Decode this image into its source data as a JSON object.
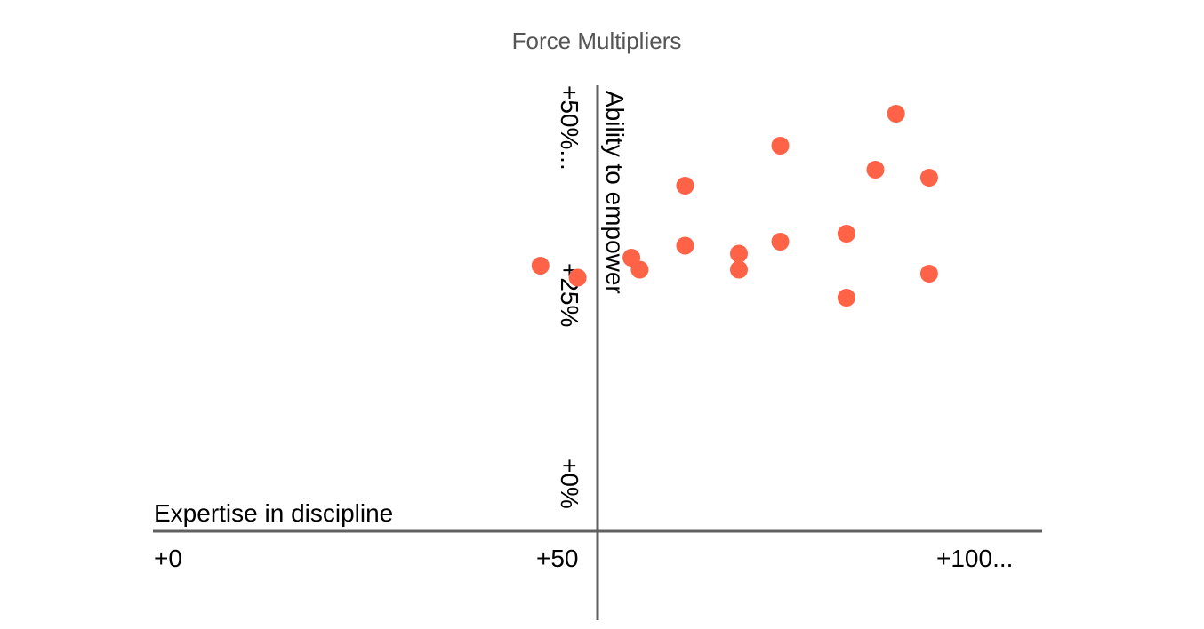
{
  "chart_data": {
    "type": "scatter",
    "title": "Force Multipliers",
    "xlabel": "Expertise in discipline",
    "ylabel": "Ability to empower",
    "x_ticks": [
      "+0",
      "+50",
      "+100..."
    ],
    "y_ticks": [
      "+0%",
      "+25%",
      "+50%..."
    ],
    "xlim": [
      0,
      100
    ],
    "ylim": [
      0,
      50
    ],
    "grid": false,
    "legend": "none",
    "color": "#ff6347",
    "series": [
      {
        "points": [
          {
            "x": 46,
            "y": 29
          },
          {
            "x": 50.5,
            "y": 27.5
          },
          {
            "x": 57,
            "y": 30
          },
          {
            "x": 58,
            "y": 28.5
          },
          {
            "x": 63.5,
            "y": 39
          },
          {
            "x": 63.5,
            "y": 31.5
          },
          {
            "x": 70,
            "y": 30.5
          },
          {
            "x": 70,
            "y": 28.5
          },
          {
            "x": 75,
            "y": 44
          },
          {
            "x": 75,
            "y": 32
          },
          {
            "x": 83,
            "y": 33
          },
          {
            "x": 83,
            "y": 25
          },
          {
            "x": 86.5,
            "y": 41
          },
          {
            "x": 89,
            "y": 48
          },
          {
            "x": 93,
            "y": 40
          },
          {
            "x": 93,
            "y": 28
          }
        ]
      }
    ]
  }
}
